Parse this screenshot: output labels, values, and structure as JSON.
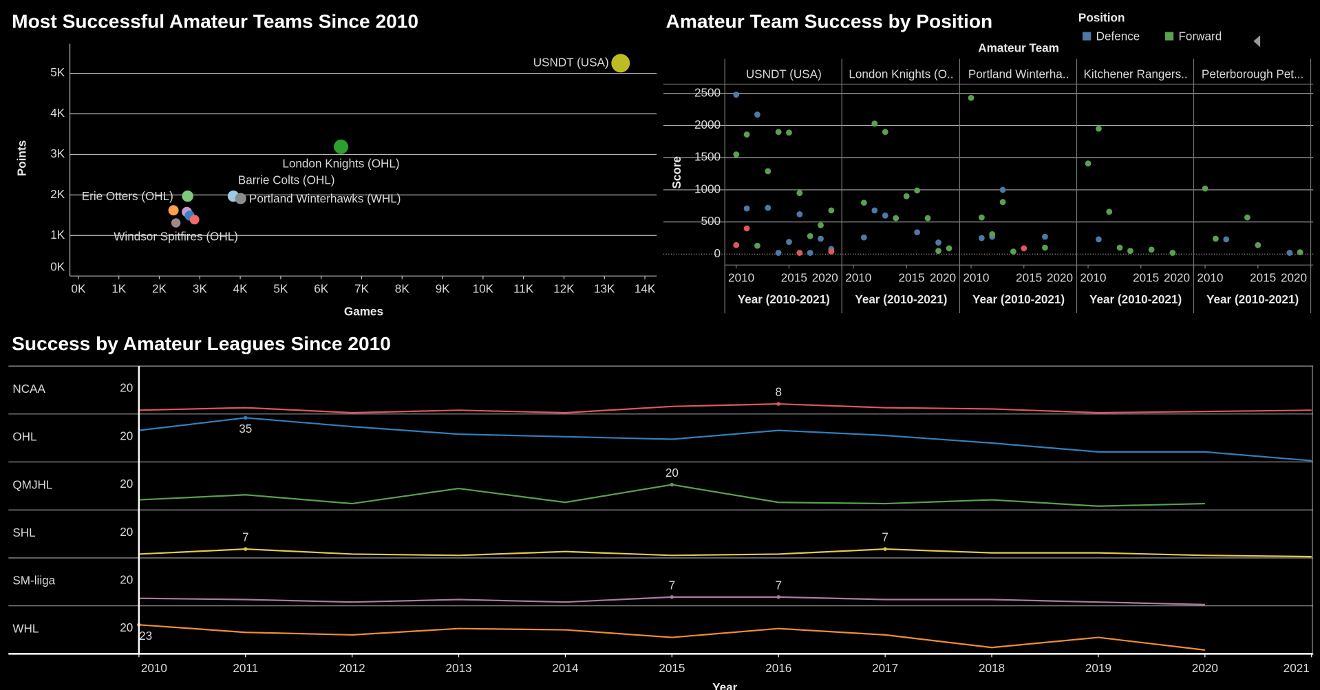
{
  "chart_data": [
    {
      "type": "scatter",
      "title": "Most Successful Amateur Teams Since 2010",
      "x_label": "Games",
      "y_label": "Points",
      "xlim": [
        -210,
        14290
      ],
      "ylim": [
        0,
        5730
      ],
      "xticks": [
        {
          "value": 0,
          "label": "0K"
        },
        {
          "value": 1000,
          "label": "1K"
        },
        {
          "value": 2000,
          "label": "2K"
        },
        {
          "value": 3000,
          "label": "3K"
        },
        {
          "value": 4000,
          "label": "4K"
        },
        {
          "value": 5000,
          "label": "5K"
        },
        {
          "value": 6000,
          "label": "6K"
        },
        {
          "value": 7000,
          "label": "7K"
        },
        {
          "value": 8000,
          "label": "8K"
        },
        {
          "value": 9000,
          "label": "9K"
        },
        {
          "value": 10000,
          "label": "10K"
        },
        {
          "value": 11000,
          "label": "11K"
        },
        {
          "value": 12000,
          "label": "12K"
        },
        {
          "value": 13000,
          "label": "13K"
        },
        {
          "value": 14000,
          "label": "14K"
        }
      ],
      "yticks": [
        {
          "value": 0,
          "label": "0K"
        },
        {
          "value": 1000,
          "label": "1K"
        },
        {
          "value": 2000,
          "label": "2K"
        },
        {
          "value": 3000,
          "label": "3K"
        },
        {
          "value": 4000,
          "label": "4K"
        },
        {
          "value": 5000,
          "label": "5K"
        }
      ],
      "grid": true,
      "categories": [
        "USNDT (USA)",
        "London Knights (OHL)",
        "Barrie Colts (OHL)",
        "Portland Winterhawks (WHL)",
        "Erie Otters (OHL)",
        "Windsor Spitfires (OHL)",
        null,
        null,
        null,
        null
      ],
      "x": [
        13400,
        6490,
        3830,
        4010,
        2700,
        2410,
        2350,
        2680,
        2750,
        2870
      ],
      "values": [
        5250,
        3190,
        1970,
        1910,
        1970,
        1310,
        1620,
        1580,
        1490,
        1390
      ],
      "colors": [
        "#bcbd22",
        "#2ca02c",
        "#9ecae9",
        "#8c8c8c",
        "#7fc97f",
        "#a08a84",
        "#ff9f4a",
        "#c49bd4",
        "#3a7fc1",
        "#f26b6b"
      ]
    },
    {
      "type": "faceted_scatter",
      "title": "Amateur Team Success by Position",
      "legend_title": "Position",
      "facet_label": "Amateur Team",
      "x_label": "Year (2010-2021)",
      "y_label": "Score",
      "xlim": [
        2009,
        2020
      ],
      "xticks": [
        2010,
        2015,
        2020
      ],
      "ylim": [
        -170,
        2709
      ],
      "yticks": [
        0,
        500,
        1000,
        1500,
        2000,
        2500
      ],
      "series": [
        {
          "name": "Defence",
          "color": "#4e79a7"
        },
        {
          "name": "Forward",
          "color": "#59a14f"
        },
        {
          "color": "#e15759"
        }
      ],
      "facets": [
        {
          "name": "USNDT (USA)",
          "series": [
            {
              "x": [
                2010,
                2011,
                2012,
                2013,
                2014,
                2015,
                2016,
                2017,
                2018,
                2019
              ],
              "values": [
                2480,
                710,
                2170,
                720,
                20,
                190,
                620,
                20,
                240,
                80
              ]
            },
            {
              "x": [
                2010,
                2011,
                2012,
                2013,
                2014,
                2015,
                2016,
                2017,
                2018,
                2019
              ],
              "values": [
                1550,
                1860,
                130,
                1290,
                1900,
                1890,
                950,
                280,
                450,
                680
              ]
            },
            {
              "x": [
                2010,
                2011,
                2016,
                2019
              ],
              "values": [
                140,
                400,
                20,
                40
              ]
            }
          ]
        },
        {
          "name": "London Knights (O..",
          "series": [
            {
              "x": [
                2011,
                2012,
                2013,
                2016,
                2018
              ],
              "values": [
                260,
                680,
                600,
                340,
                180
              ]
            },
            {
              "x": [
                2011,
                2012,
                2013,
                2014,
                2015,
                2016,
                2017,
                2018,
                2019
              ],
              "values": [
                800,
                2030,
                1900,
                560,
                900,
                990,
                560,
                50,
                90
              ]
            },
            {
              "x": [],
              "values": []
            }
          ]
        },
        {
          "name": "Portland Winterha..",
          "series": [
            {
              "x": [
                2011,
                2012,
                2013,
                2017
              ],
              "values": [
                250,
                270,
                1000,
                270
              ]
            },
            {
              "x": [
                2010,
                2011,
                2012,
                2013,
                2014,
                2017
              ],
              "values": [
                2430,
                570,
                310,
                810,
                40,
                100
              ]
            },
            {
              "x": [
                2015
              ],
              "values": [
                90
              ]
            }
          ]
        },
        {
          "name": "Kitchener Rangers..",
          "series": [
            {
              "x": [
                2011
              ],
              "values": [
                230
              ]
            },
            {
              "x": [
                2010,
                2011,
                2012,
                2013,
                2014,
                2016,
                2018
              ],
              "values": [
                1410,
                1950,
                660,
                100,
                50,
                70,
                20
              ]
            },
            {
              "x": [],
              "values": []
            }
          ]
        },
        {
          "name": "Peterborough Pet...",
          "series": [
            {
              "x": [
                2012,
                2018
              ],
              "values": [
                230,
                20
              ]
            },
            {
              "x": [
                2010,
                2011,
                2014,
                2015,
                2019
              ],
              "values": [
                1020,
                240,
                570,
                140,
                30
              ]
            },
            {
              "x": [],
              "values": []
            }
          ]
        }
      ]
    },
    {
      "type": "line_rows",
      "title": "Success by Amateur Leagues Since 2010",
      "x_label": "Year",
      "x": [
        2010,
        2011,
        2012,
        2013,
        2014,
        2015,
        2016,
        2017,
        2018,
        2019,
        2020,
        2021
      ],
      "xlim": [
        2010,
        2021
      ],
      "xticks": [
        2010,
        2011,
        2012,
        2013,
        2014,
        2015,
        2016,
        2017,
        2018,
        2019,
        2020,
        2021
      ],
      "ylim": [
        0,
        38
      ],
      "yticks": [
        20
      ],
      "series": [
        {
          "name": "NCAA",
          "color": "#e15759",
          "values": [
            3,
            5,
            1,
            3,
            1,
            6,
            8,
            5,
            4,
            1,
            2,
            3
          ],
          "value_labels": [
            null,
            null,
            null,
            null,
            null,
            null,
            "8",
            null,
            null,
            null,
            null,
            null
          ]
        },
        {
          "name": "OHL",
          "color": "#2f80c0",
          "values": [
            25,
            35,
            28,
            22,
            20,
            18,
            25,
            21,
            15,
            8,
            8,
            1
          ],
          "value_labels": [
            null,
            "35",
            null,
            null,
            null,
            null,
            null,
            null,
            null,
            null,
            null,
            null
          ]
        },
        {
          "name": "QMJHL",
          "color": "#59a14f",
          "values": [
            8,
            12,
            5,
            17,
            6,
            20,
            6,
            5,
            8,
            3,
            5,
            null
          ],
          "value_labels": [
            null,
            null,
            null,
            null,
            null,
            "20",
            null,
            null,
            null,
            null,
            null,
            null
          ]
        },
        {
          "name": "SHL",
          "color": "#e6c84a",
          "values": [
            3,
            7,
            3,
            2,
            5,
            2,
            3,
            7,
            4,
            4,
            2,
            1
          ],
          "value_labels": [
            null,
            "7",
            null,
            null,
            null,
            null,
            null,
            "7",
            null,
            null,
            null,
            null
          ]
        },
        {
          "name": "SM-liiga",
          "color": "#b07aa1",
          "values": [
            6,
            5,
            3,
            5,
            3,
            7,
            7,
            5,
            5,
            3,
            1,
            null
          ],
          "value_labels": [
            null,
            null,
            null,
            null,
            null,
            "7",
            "7",
            null,
            null,
            null,
            null,
            null
          ]
        },
        {
          "name": "WHL",
          "color": "#f28e2b",
          "values": [
            23,
            17,
            15,
            20,
            19,
            13,
            20,
            15,
            5,
            13,
            3,
            null
          ],
          "value_labels": [
            "23",
            null,
            null,
            null,
            null,
            null,
            null,
            null,
            null,
            null,
            null,
            null
          ]
        }
      ]
    }
  ]
}
